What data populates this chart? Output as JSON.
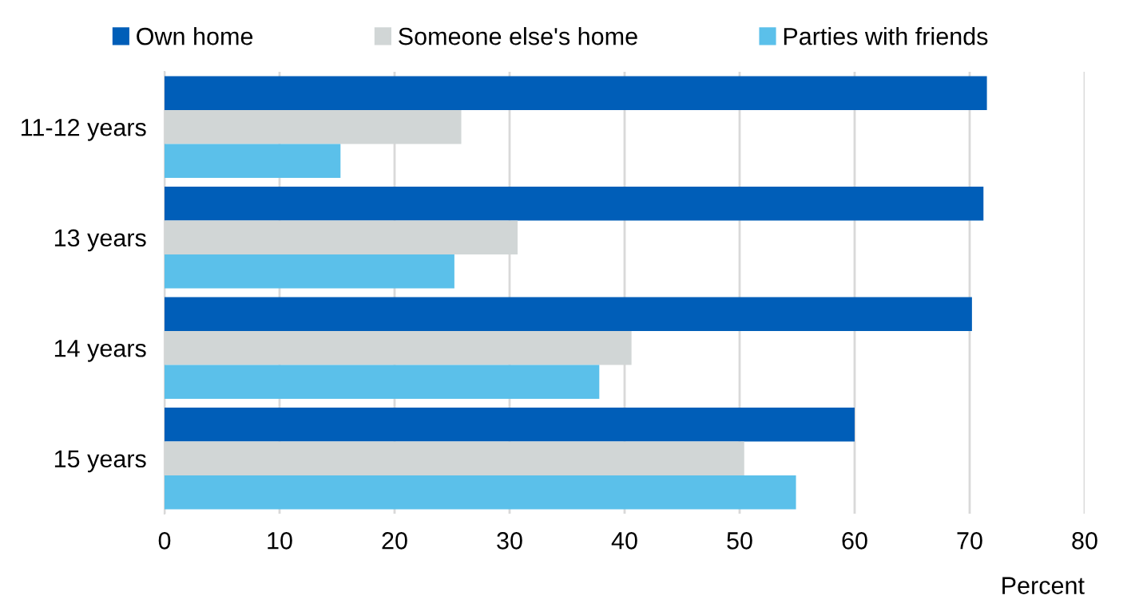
{
  "chart_data": {
    "type": "bar",
    "orientation": "horizontal",
    "xlabel": "Percent",
    "categories": [
      "11-12 years",
      "13 years",
      "14 years",
      "15 years"
    ],
    "series": [
      {
        "name": "Own home",
        "color": "#005eb8",
        "values": [
          71.5,
          71.2,
          70.2,
          60.0
        ]
      },
      {
        "name": "Someone else's home",
        "color": "#d1d6d6",
        "values": [
          25.8,
          30.7,
          40.6,
          50.4
        ]
      },
      {
        "name": "Parties with friends",
        "color": "#5bc0ea",
        "values": [
          15.3,
          25.2,
          37.8,
          54.9
        ]
      }
    ],
    "xlim": [
      0,
      80
    ],
    "xticks": [
      0,
      10,
      20,
      30,
      40,
      50,
      60,
      70,
      80
    ],
    "grid": "x",
    "legend": "top"
  }
}
